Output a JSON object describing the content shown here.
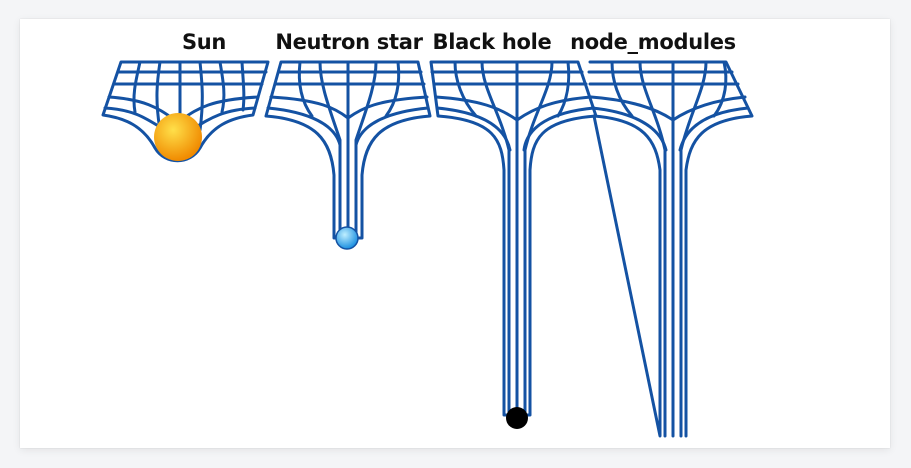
{
  "panels": [
    {
      "label": "Sun"
    },
    {
      "label": "Neutron star"
    },
    {
      "label": "Black hole"
    },
    {
      "label": "node_modules"
    }
  ],
  "colors": {
    "grid": "#1452a3",
    "sun_inner": "#ffe04a",
    "sun_outer": "#f08a00",
    "neutron_inner": "#bfefff",
    "neutron_outer": "#1a8fe0",
    "black_hole": "#000000",
    "background": "#ffffff"
  }
}
